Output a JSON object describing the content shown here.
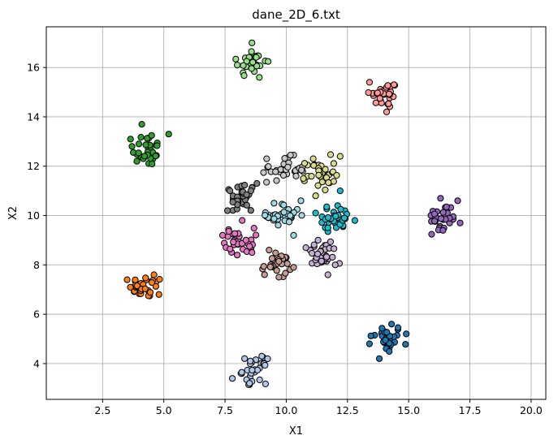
{
  "chart_data": {
    "type": "scatter",
    "title": "dane_2D_6.txt",
    "xlabel": "X1",
    "ylabel": "X2",
    "xlim": [
      0.2,
      20.6
    ],
    "ylim": [
      2.55,
      17.65
    ],
    "xticks": [
      2.5,
      5.0,
      7.5,
      10.0,
      12.5,
      15.0,
      17.5,
      20.0
    ],
    "xtick_labels": [
      "2.5",
      "5.0",
      "7.5",
      "10.0",
      "12.5",
      "15.0",
      "17.5",
      "20.0"
    ],
    "yticks": [
      4,
      6,
      8,
      10,
      12,
      14,
      16
    ],
    "ytick_labels": [
      "4",
      "6",
      "8",
      "10",
      "12",
      "14",
      "16"
    ],
    "grid": true,
    "legend": "none",
    "marker": "circle",
    "edge_color": "#000000",
    "clusters": [
      {
        "color": "#1f77b4",
        "center": [
          14.1,
          5.0
        ],
        "spread": [
          0.35,
          0.3
        ],
        "n": 30,
        "points": [
          [
            13.8,
            4.2
          ],
          [
            14.9,
            5.2
          ],
          [
            13.4,
            4.8
          ],
          [
            14.3,
            5.6
          ]
        ]
      },
      {
        "color": "#ff7f0e",
        "center": [
          4.3,
          7.1
        ],
        "spread": [
          0.35,
          0.22
        ],
        "n": 30,
        "points": [
          [
            3.5,
            7.4
          ],
          [
            4.8,
            6.8
          ],
          [
            4.6,
            7.6
          ]
        ]
      },
      {
        "color": "#2ca02c",
        "center": [
          4.3,
          12.7
        ],
        "spread": [
          0.3,
          0.35
        ],
        "n": 30,
        "points": [
          [
            5.2,
            13.3
          ],
          [
            4.1,
            13.7
          ],
          [
            3.9,
            12.2
          ],
          [
            3.7,
            12.8
          ]
        ]
      },
      {
        "color": "#98df8a",
        "center": [
          8.6,
          16.2
        ],
        "spread": [
          0.3,
          0.3
        ],
        "n": 30,
        "points": [
          [
            8.6,
            17.0
          ],
          [
            8.0,
            16.1
          ],
          [
            8.9,
            15.6
          ]
        ]
      },
      {
        "color": "#ff9896",
        "center": [
          14.0,
          14.9
        ],
        "spread": [
          0.3,
          0.28
        ],
        "n": 30,
        "points": [
          [
            13.4,
            15.4
          ],
          [
            14.1,
            14.2
          ],
          [
            14.4,
            15.3
          ]
        ]
      },
      {
        "color": "#9467bd",
        "center": [
          16.4,
          9.9
        ],
        "spread": [
          0.3,
          0.3
        ],
        "n": 30,
        "points": [
          [
            17.1,
            9.7
          ],
          [
            17.0,
            10.6
          ],
          [
            16.3,
            10.7
          ],
          [
            16.4,
            9.4
          ]
        ]
      },
      {
        "color": "#7f7f7f",
        "center": [
          8.2,
          10.7
        ],
        "spread": [
          0.25,
          0.35
        ],
        "n": 30,
        "points": [
          [
            7.6,
            10.2
          ],
          [
            8.8,
            11.3
          ],
          [
            7.7,
            11.0
          ]
        ]
      },
      {
        "color": "#c7c7c7",
        "center": [
          9.9,
          11.9
        ],
        "spread": [
          0.45,
          0.25
        ],
        "n": 30,
        "points": [
          [
            9.2,
            12.3
          ],
          [
            10.4,
            11.6
          ]
        ]
      },
      {
        "color": "#dbdb8d",
        "center": [
          11.4,
          11.7
        ],
        "spread": [
          0.3,
          0.35
        ],
        "n": 30,
        "points": [
          [
            12.2,
            12.4
          ],
          [
            11.1,
            12.3
          ],
          [
            11.2,
            10.8
          ],
          [
            10.7,
            11.5
          ]
        ]
      },
      {
        "color": "#9edae5",
        "center": [
          9.9,
          10.0
        ],
        "spread": [
          0.35,
          0.25
        ],
        "n": 30,
        "points": [
          [
            9.5,
            10.5
          ],
          [
            10.6,
            10.6
          ],
          [
            10.3,
            9.2
          ]
        ]
      },
      {
        "color": "#17becf",
        "center": [
          12.0,
          9.9
        ],
        "spread": [
          0.4,
          0.25
        ],
        "n": 30,
        "points": [
          [
            11.2,
            10.1
          ],
          [
            12.2,
            11.0
          ],
          [
            12.8,
            9.8
          ],
          [
            11.7,
            9.5
          ]
        ]
      },
      {
        "color": "#e377c2",
        "center": [
          8.1,
          9.0
        ],
        "spread": [
          0.3,
          0.25
        ],
        "n": 30,
        "points": [
          [
            7.4,
            9.2
          ],
          [
            8.2,
            9.8
          ],
          [
            8.0,
            8.4
          ],
          [
            8.6,
            8.5
          ]
        ]
      },
      {
        "color": "#c49c94",
        "center": [
          9.6,
          8.0
        ],
        "spread": [
          0.3,
          0.22
        ],
        "n": 30,
        "points": [
          [
            10.3,
            7.9
          ],
          [
            9.7,
            7.5
          ],
          [
            9.3,
            8.6
          ]
        ]
      },
      {
        "color": "#c5b0d5",
        "center": [
          11.4,
          8.4
        ],
        "spread": [
          0.35,
          0.3
        ],
        "n": 30,
        "points": [
          [
            10.8,
            8.7
          ],
          [
            11.7,
            7.6
          ],
          [
            11.3,
            9.0
          ],
          [
            12.0,
            8.0
          ]
        ]
      },
      {
        "color": "#aec7e8",
        "center": [
          8.7,
          3.7
        ],
        "spread": [
          0.25,
          0.25
        ],
        "n": 28,
        "points": [
          [
            7.8,
            3.4
          ],
          [
            9.0,
            4.3
          ],
          [
            8.3,
            4.2
          ],
          [
            8.5,
            3.2
          ]
        ]
      }
    ]
  }
}
